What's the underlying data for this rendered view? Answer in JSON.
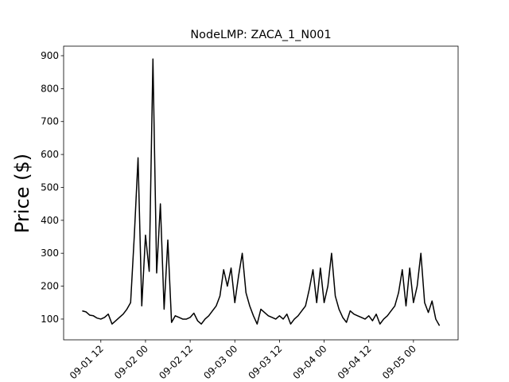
{
  "chart_data": {
    "type": "line",
    "title": "NodeLMP: ZACA_1_N001",
    "y_label": "Price ($)",
    "x": [
      "09-01 07",
      "09-01 08",
      "09-01 09",
      "09-01 10",
      "09-01 11",
      "09-01 12",
      "09-01 13",
      "09-01 14",
      "09-01 15",
      "09-01 16",
      "09-01 17",
      "09-01 18",
      "09-01 19",
      "09-01 20",
      "09-01 21",
      "09-01 22",
      "09-01 23",
      "09-02 00",
      "09-02 01",
      "09-02 02",
      "09-02 03",
      "09-02 04",
      "09-02 05",
      "09-02 06",
      "09-02 07",
      "09-02 08",
      "09-02 09",
      "09-02 10",
      "09-02 11",
      "09-02 12",
      "09-02 13",
      "09-02 14",
      "09-02 15",
      "09-02 16",
      "09-02 17",
      "09-02 18",
      "09-02 19",
      "09-02 20",
      "09-02 21",
      "09-02 22",
      "09-02 23",
      "09-03 00",
      "09-03 01",
      "09-03 02",
      "09-03 03",
      "09-03 04",
      "09-03 05",
      "09-03 06",
      "09-03 07",
      "09-03 08",
      "09-03 09",
      "09-03 10",
      "09-03 11",
      "09-03 12",
      "09-03 13",
      "09-03 14",
      "09-03 15",
      "09-03 16",
      "09-03 17",
      "09-03 18",
      "09-03 19",
      "09-03 20",
      "09-03 21",
      "09-03 22",
      "09-03 23",
      "09-04 00",
      "09-04 01",
      "09-04 02",
      "09-04 03",
      "09-04 04",
      "09-04 05",
      "09-04 06",
      "09-04 07",
      "09-04 08",
      "09-04 09",
      "09-04 10",
      "09-04 11",
      "09-04 12",
      "09-04 13",
      "09-04 14",
      "09-04 15",
      "09-04 16",
      "09-04 17",
      "09-04 18",
      "09-04 19",
      "09-04 20",
      "09-04 21",
      "09-04 22",
      "09-04 23",
      "09-05 00",
      "09-05 01",
      "09-05 02",
      "09-05 03",
      "09-05 04",
      "09-05 05",
      "09-05 06",
      "09-05 07"
    ],
    "series": [
      {
        "color": "#000000",
        "values": [
          125,
          122,
          112,
          110,
          103,
          100,
          105,
          115,
          85,
          95,
          105,
          115,
          130,
          150,
          355,
          590,
          140,
          355,
          245,
          890,
          240,
          450,
          130,
          340,
          90,
          110,
          105,
          100,
          100,
          105,
          118,
          95,
          85,
          100,
          110,
          125,
          140,
          170,
          250,
          200,
          255,
          150,
          230,
          300,
          180,
          140,
          110,
          85,
          130,
          120,
          110,
          105,
          100,
          110,
          100,
          115,
          85,
          100,
          110,
          125,
          140,
          190,
          250,
          150,
          255,
          150,
          200,
          300,
          170,
          130,
          105,
          90,
          125,
          115,
          110,
          105,
          100,
          110,
          95,
          115,
          85,
          100,
          110,
          125,
          140,
          180,
          250,
          140,
          255,
          150,
          200,
          300,
          150,
          120,
          155,
          100,
          80
        ]
      }
    ],
    "xlim": [
      "09-01 02",
      "09-05 12"
    ],
    "xticks": [
      "09-01 12",
      "09-02 00",
      "09-02 12",
      "09-03 00",
      "09-03 12",
      "09-04 00",
      "09-04 12",
      "09-05 00"
    ],
    "ylim": [
      37,
      929
    ],
    "yticks": [
      100,
      200,
      300,
      400,
      500,
      600,
      700,
      800,
      900
    ]
  }
}
